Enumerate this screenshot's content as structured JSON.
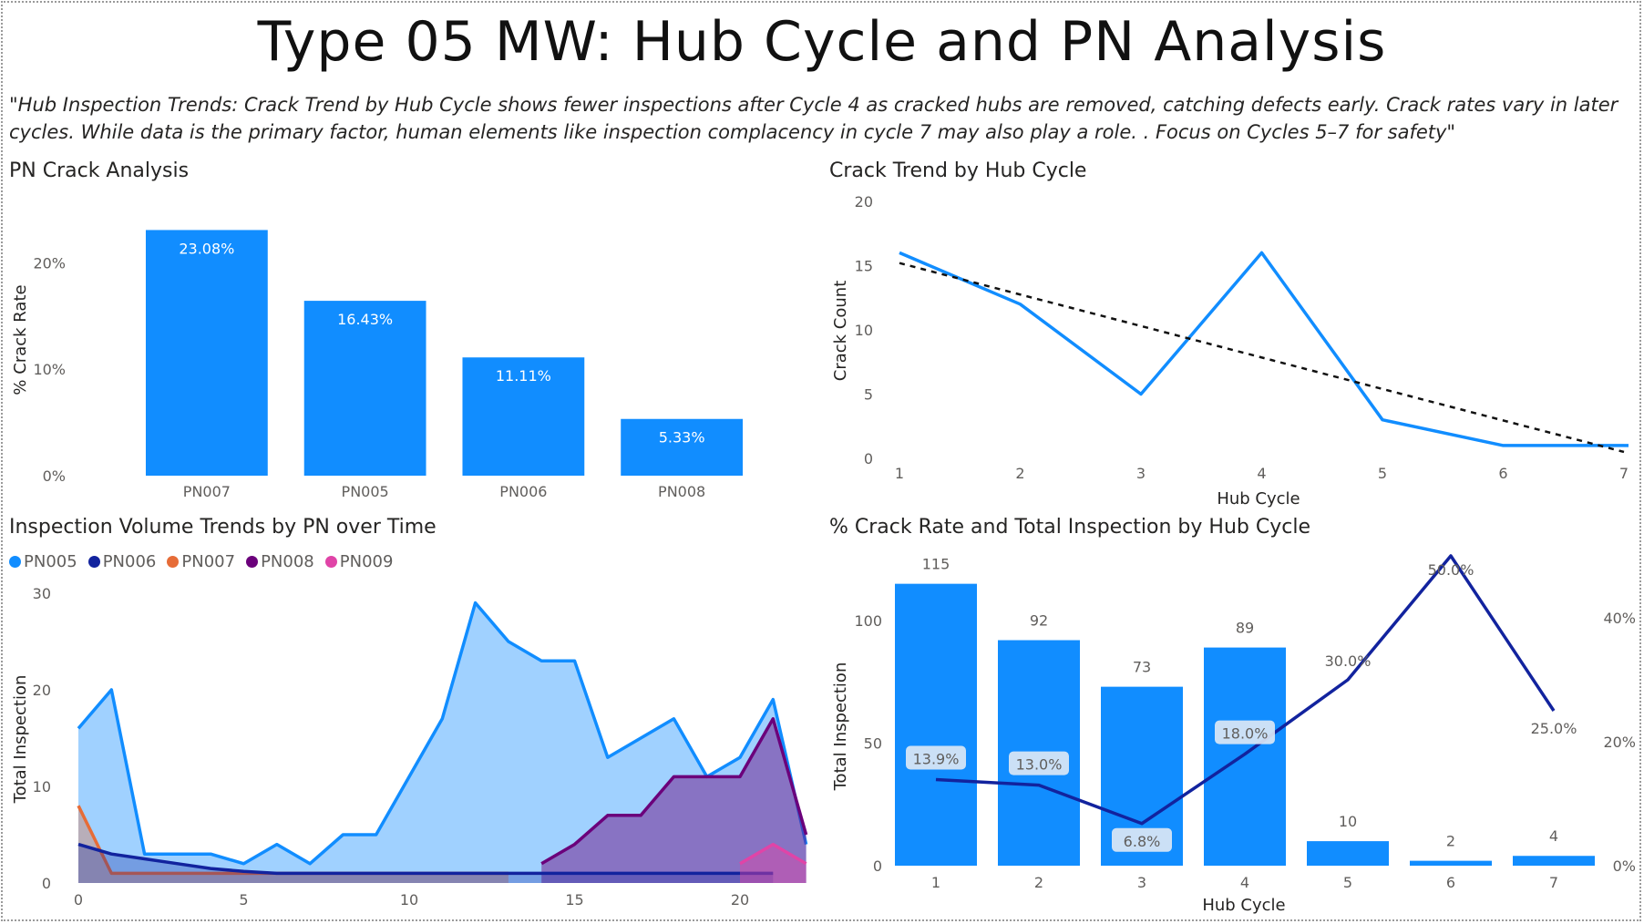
{
  "title": "Type 05 MW: Hub Cycle and PN Analysis",
  "subtitle": "\"Hub Inspection Trends: Crack Trend by Hub Cycle shows fewer inspections after Cycle 4 as cracked hubs are removed, catching defects early. Crack rates vary in later cycles. While data is the primary factor, human elements like inspection complacency in cycle 7 may also play a role. . Focus on Cycles 5–7 for safety\"",
  "panels": {
    "pn_crack": "PN Crack Analysis",
    "crack_trend": "Crack Trend by Hub Cycle",
    "inspection_volume": "Inspection Volume Trends by PN over Time",
    "crack_rate_total": "% Crack Rate and Total Inspection by Hub Cycle"
  },
  "chart_data": [
    {
      "type": "bar",
      "title": "PN Crack Analysis",
      "categories": [
        "PN007",
        "PN005",
        "PN006",
        "PN008"
      ],
      "values": [
        23.08,
        16.43,
        11.11,
        5.33
      ],
      "data_labels": [
        "23.08%",
        "16.43%",
        "11.11%",
        "5.33%"
      ],
      "ylabel": "% Crack Rate",
      "xlabel": "",
      "ylim": [
        0,
        25
      ],
      "yticks": [
        "0%",
        "10%",
        "20%"
      ],
      "color": "#118DFF"
    },
    {
      "type": "line",
      "title": "Crack Trend by Hub Cycle",
      "x": [
        1,
        2,
        3,
        4,
        5,
        6,
        7
      ],
      "series": [
        {
          "values": [
            16,
            12,
            5,
            16,
            3,
            1,
            1
          ],
          "color": "#118DFF"
        }
      ],
      "trendline": {
        "style": "dashed",
        "start": 15.2,
        "end": 0.5,
        "color": "#111111"
      },
      "xlabel": "Hub Cycle",
      "ylabel": "Crack Count",
      "ylim": [
        0,
        20
      ],
      "yticks": [
        "0",
        "5",
        "10",
        "15",
        "20"
      ]
    },
    {
      "type": "area",
      "title": "Inspection Volume Trends by PN over Time",
      "legend": [
        "PN005",
        "PN006",
        "PN007",
        "PN008",
        "PN009"
      ],
      "legend_position": "top-left",
      "xlabel": "",
      "ylabel": "Total Inspection",
      "xlim": [
        0,
        22
      ],
      "ylim": [
        0,
        30
      ],
      "xticks": [
        "0",
        "5",
        "10",
        "15",
        "20"
      ],
      "yticks": [
        "0",
        "10",
        "20",
        "30"
      ],
      "series": [
        {
          "name": "PN005",
          "color": "#118DFF",
          "x": [
            0,
            1,
            2,
            3,
            4,
            5,
            6,
            7,
            8,
            9,
            10,
            11,
            12,
            13,
            14,
            15,
            16,
            17,
            18,
            19,
            20,
            21,
            22
          ],
          "values": [
            16,
            20,
            3,
            3,
            3,
            2,
            4,
            2,
            5,
            5,
            11,
            17,
            29,
            25,
            23,
            23,
            13,
            15,
            17,
            11,
            13,
            19,
            4
          ]
        },
        {
          "name": "PN006",
          "color": "#12239E",
          "x": [
            0,
            1,
            2,
            3,
            4,
            5,
            6,
            7,
            8,
            9,
            10,
            11,
            12,
            13,
            14,
            15,
            16,
            17,
            18,
            19,
            20,
            21
          ],
          "values": [
            4,
            3,
            2.5,
            2,
            1.5,
            1.2,
            1,
            1,
            1,
            1,
            1,
            1,
            1,
            1,
            1,
            1,
            1,
            1,
            1,
            1,
            1,
            1
          ]
        },
        {
          "name": "PN007",
          "color": "#E66C37",
          "x": [
            0,
            1,
            2,
            3,
            4,
            5,
            6,
            7,
            8,
            9,
            10,
            11,
            12,
            13
          ],
          "values": [
            8,
            1,
            1,
            1,
            1,
            1,
            1,
            1,
            1,
            1,
            1,
            1,
            1,
            1
          ]
        },
        {
          "name": "PN008",
          "color": "#6B007B",
          "x": [
            14,
            15,
            16,
            17,
            18,
            19,
            20,
            21,
            22
          ],
          "values": [
            2,
            4,
            7,
            7,
            11,
            11,
            11,
            17,
            5
          ]
        },
        {
          "name": "PN009",
          "color": "#E044A7",
          "x": [
            20,
            21,
            22
          ],
          "values": [
            2,
            4,
            2
          ]
        }
      ]
    },
    {
      "type": "bar",
      "title": "% Crack Rate and Total Inspection by Hub Cycle",
      "categories": [
        "1",
        "2",
        "3",
        "4",
        "5",
        "6",
        "7"
      ],
      "values": [
        115,
        92,
        73,
        89,
        10,
        2,
        4
      ],
      "bar_labels": [
        "115",
        "92",
        "73",
        "89",
        "10",
        "2",
        "4"
      ],
      "line_values": [
        13.9,
        13.0,
        6.8,
        18.0,
        30.0,
        50.0,
        25.0
      ],
      "line_labels": [
        "13.9%",
        "13.0%",
        "6.8%",
        "18.0%",
        "30.0%",
        "50.0%",
        "25.0%"
      ],
      "xlabel": "Hub Cycle",
      "ylabel": "Total Inspection",
      "ylim": [
        0,
        125
      ],
      "y2lim": [
        0,
        52
      ],
      "yticks": [
        "0",
        "50",
        "100"
      ],
      "y2ticks": [
        "0%",
        "20%",
        "40%"
      ],
      "bar_color": "#118DFF",
      "line_color": "#12239E"
    }
  ]
}
